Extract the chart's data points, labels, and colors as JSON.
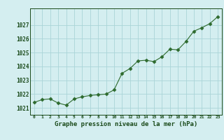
{
  "x": [
    0,
    1,
    2,
    3,
    4,
    5,
    6,
    7,
    8,
    9,
    10,
    11,
    12,
    13,
    14,
    15,
    16,
    17,
    18,
    19,
    20,
    21,
    22,
    23
  ],
  "y": [
    1021.4,
    1021.6,
    1021.65,
    1021.35,
    1021.2,
    1021.65,
    1021.8,
    1021.9,
    1021.95,
    1022.0,
    1022.3,
    1023.5,
    1023.85,
    1024.4,
    1024.45,
    1024.35,
    1024.7,
    1025.25,
    1025.2,
    1025.8,
    1026.55,
    1026.8,
    1027.1,
    1027.6
  ],
  "ylim": [
    1020.5,
    1028.2
  ],
  "yticks": [
    1021,
    1022,
    1023,
    1024,
    1025,
    1026,
    1027
  ],
  "xtick_labels": [
    "0",
    "1",
    "2",
    "3",
    "4",
    "5",
    "6",
    "7",
    "8",
    "9",
    "10",
    "11",
    "12",
    "13",
    "14",
    "15",
    "16",
    "17",
    "18",
    "19",
    "20",
    "21",
    "22",
    "23"
  ],
  "xlabel": "Graphe pression niveau de la mer (hPa)",
  "line_color": "#2d6a2d",
  "marker": "D",
  "marker_size": 2.5,
  "bg_color": "#d4eef0",
  "grid_color": "#aad4d8",
  "tick_label_color": "#1a4a1a",
  "xlabel_color": "#1a4a1a"
}
